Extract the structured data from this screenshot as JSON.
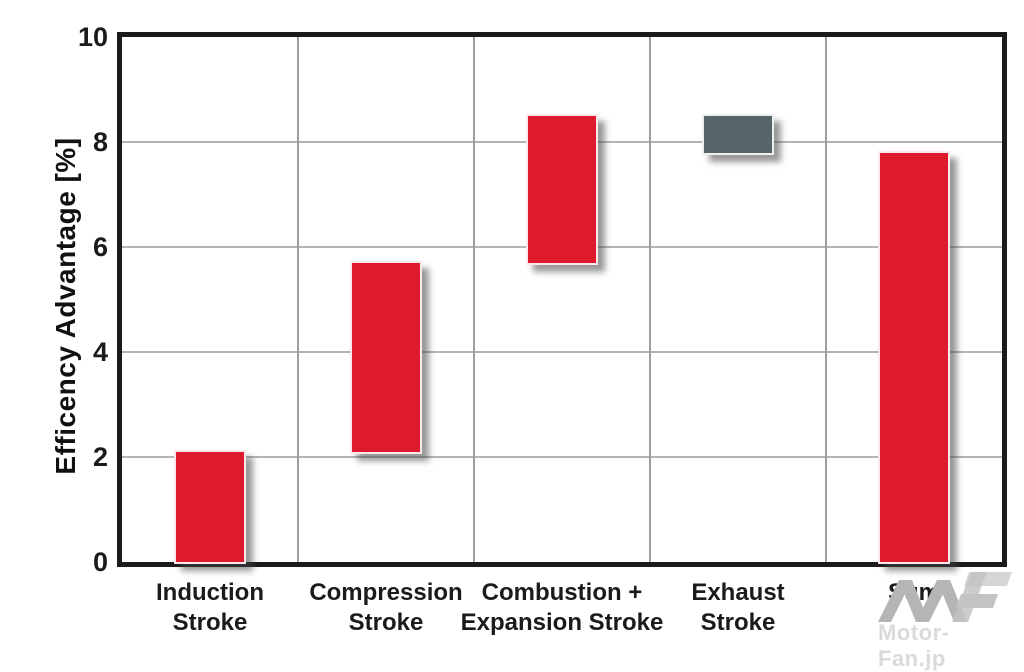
{
  "chart_data": {
    "type": "bar",
    "subtype": "waterfall",
    "title": "",
    "xlabel": "",
    "ylabel": "Efficency Advantage [%]",
    "ylim": [
      0,
      10
    ],
    "yticks": [
      0,
      2,
      4,
      6,
      8,
      10
    ],
    "grid": true,
    "legend": false,
    "categories": [
      "Induction\nStroke",
      "Compression\nStroke",
      "Combustion +\nExpansion Stroke",
      "Exhaust\nStroke",
      "Sum"
    ],
    "bars": [
      {
        "category": "Induction Stroke",
        "start": 0,
        "end": 2.1,
        "kind": "gain"
      },
      {
        "category": "Compression Stroke",
        "start": 2.1,
        "end": 5.7,
        "kind": "gain"
      },
      {
        "category": "Combustion + Expansion Stroke",
        "start": 5.7,
        "end": 8.5,
        "kind": "gain"
      },
      {
        "category": "Exhaust Stroke",
        "start": 7.8,
        "end": 8.5,
        "kind": "loss"
      },
      {
        "category": "Sum",
        "start": 0,
        "end": 7.8,
        "kind": "gain"
      }
    ],
    "colors": {
      "gain": "#de1b2d",
      "loss": "#57656a",
      "frame": "#1b1b1b",
      "gridline": "#b4b4b4"
    }
  },
  "watermark": {
    "logo": "motor-fan-mf-logo",
    "text": "Motor-Fan.jp"
  }
}
